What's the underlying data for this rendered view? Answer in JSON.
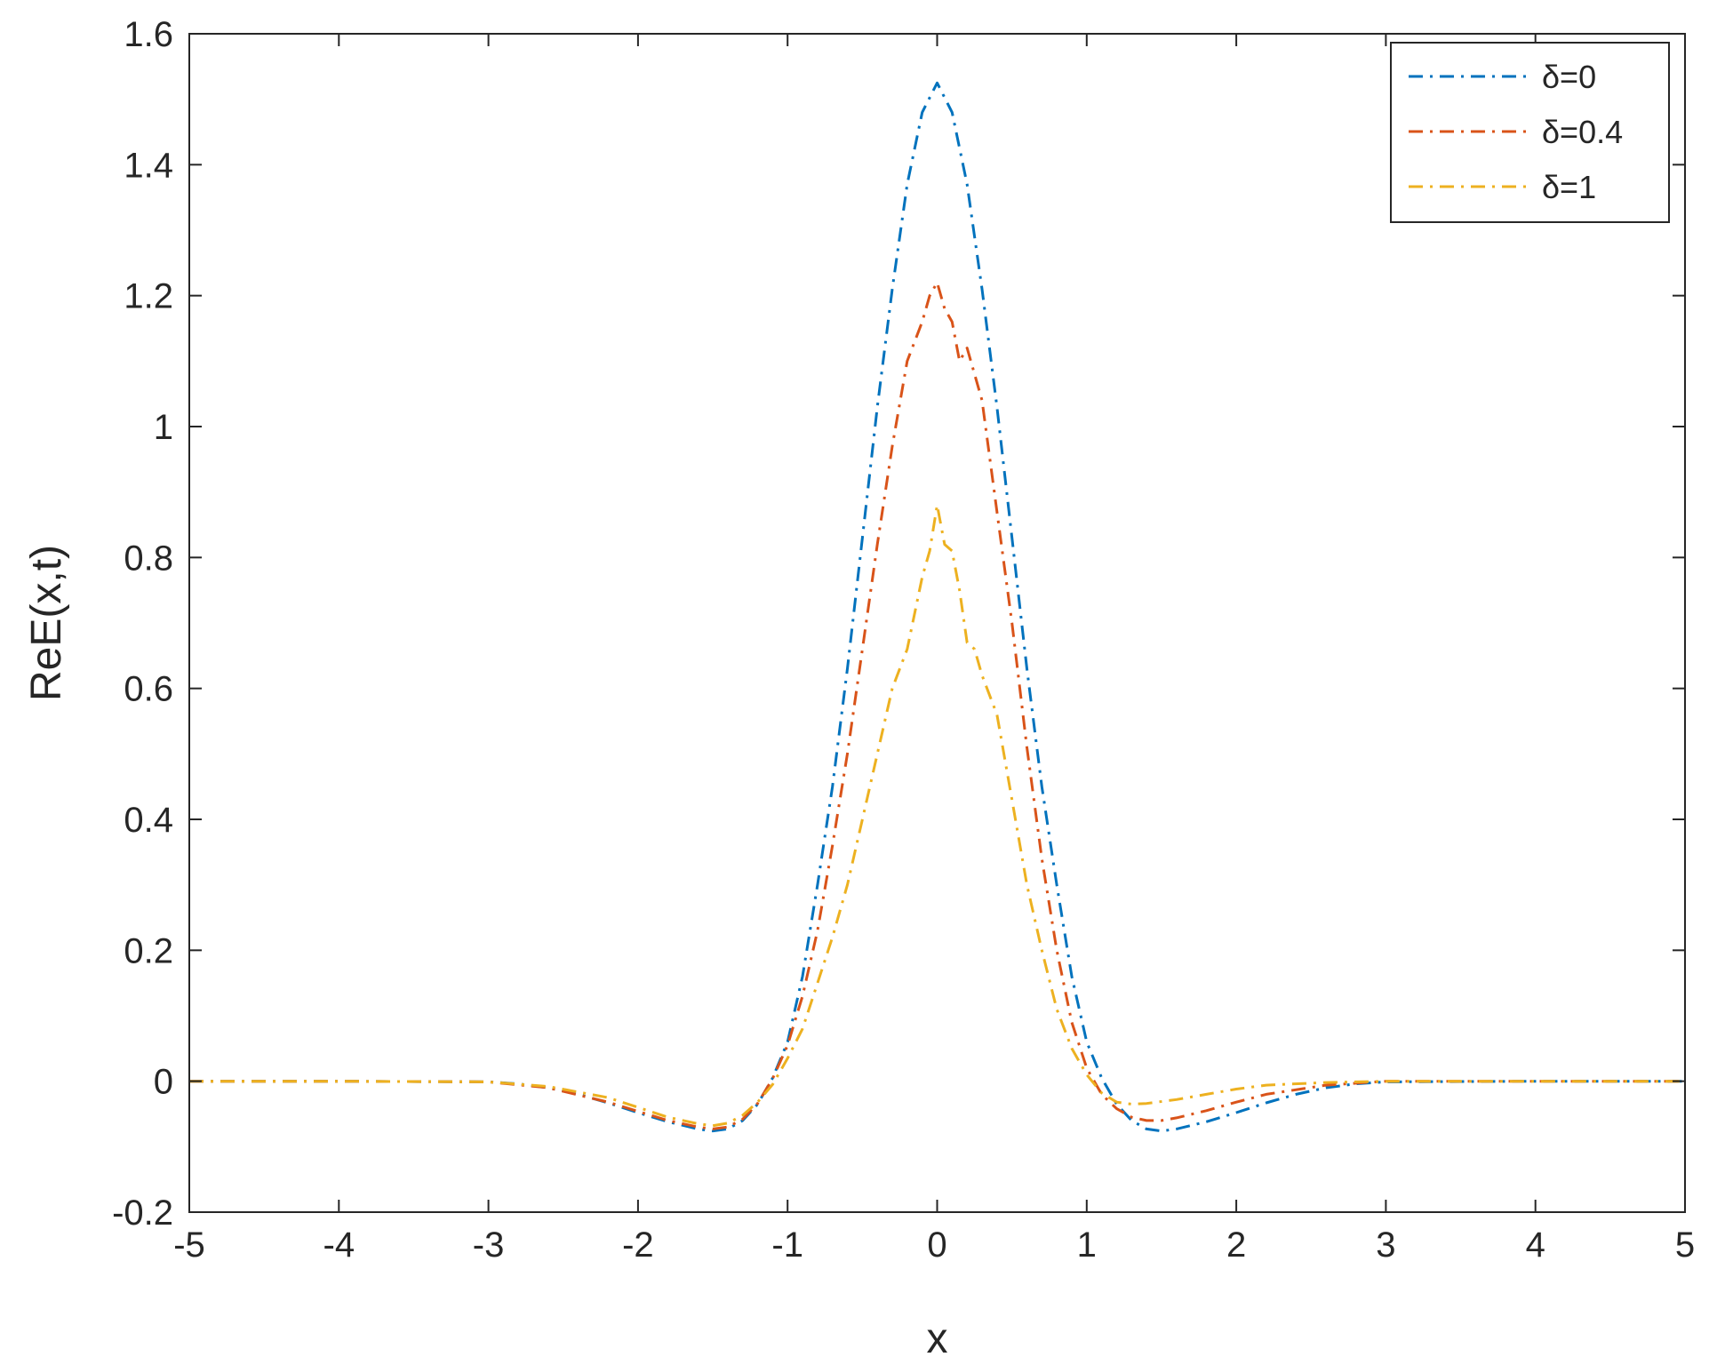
{
  "chart_data": {
    "type": "line",
    "title": "",
    "xlabel": "x",
    "ylabel": "ReE(x,t)",
    "xlim": [
      -5,
      5
    ],
    "ylim": [
      -0.2,
      1.6
    ],
    "xticks": [
      -5,
      -4,
      -3,
      -2,
      -1,
      0,
      1,
      2,
      3,
      4,
      5
    ],
    "yticks": [
      -0.2,
      0,
      0.2,
      0.4,
      0.6,
      0.8,
      1,
      1.2,
      1.4,
      1.6
    ],
    "xtick_labels": [
      "-5",
      "-4",
      "-3",
      "-2",
      "-1",
      "0",
      "1",
      "2",
      "3",
      "4",
      "5"
    ],
    "ytick_labels": [
      "-0.2",
      "0",
      "0.2",
      "0.4",
      "0.6",
      "0.8",
      "1",
      "1.2",
      "1.4",
      "1.6"
    ],
    "grid": false,
    "legend_position": "top-right",
    "series": [
      {
        "name": "δ=0",
        "color": "#0072BD",
        "line_style": "dash-dot",
        "x": [
          -5,
          -4,
          -3,
          -2.8,
          -2.6,
          -2.4,
          -2.2,
          -2,
          -1.8,
          -1.6,
          -1.5,
          -1.4,
          -1.3,
          -1.2,
          -1.1,
          -1,
          -0.9,
          -0.8,
          -0.7,
          -0.6,
          -0.5,
          -0.4,
          -0.3,
          -0.2,
          -0.1,
          0,
          0.1,
          0.2,
          0.3,
          0.4,
          0.5,
          0.6,
          0.7,
          0.8,
          0.9,
          1,
          1.1,
          1.2,
          1.3,
          1.4,
          1.5,
          1.6,
          1.8,
          2,
          2.2,
          2.4,
          2.6,
          2.8,
          3,
          4,
          5
        ],
        "y": [
          0,
          0,
          -0.001,
          -0.004,
          -0.01,
          -0.02,
          -0.033,
          -0.048,
          -0.062,
          -0.073,
          -0.076,
          -0.073,
          -0.06,
          -0.035,
          0.005,
          0.06,
          0.16,
          0.3,
          0.45,
          0.63,
          0.83,
          1.03,
          1.21,
          1.37,
          1.48,
          1.525,
          1.48,
          1.37,
          1.21,
          1.03,
          0.83,
          0.63,
          0.45,
          0.3,
          0.16,
          0.06,
          0.005,
          -0.035,
          -0.06,
          -0.073,
          -0.076,
          -0.073,
          -0.062,
          -0.048,
          -0.033,
          -0.02,
          -0.01,
          -0.004,
          -0.001,
          0,
          0
        ]
      },
      {
        "name": "δ=0.4",
        "color": "#D95319",
        "line_style": "dash-dot",
        "x": [
          -5,
          -4,
          -3,
          -2.6,
          -2.2,
          -2,
          -1.8,
          -1.6,
          -1.5,
          -1.4,
          -1.3,
          -1.2,
          -1.1,
          -1,
          -0.9,
          -0.8,
          -0.7,
          -0.6,
          -0.5,
          -0.4,
          -0.3,
          -0.2,
          -0.1,
          -0.05,
          0,
          0.05,
          0.1,
          0.15,
          0.2,
          0.3,
          0.4,
          0.5,
          0.6,
          0.7,
          0.8,
          0.9,
          1,
          1.1,
          1.2,
          1.3,
          1.4,
          1.5,
          1.6,
          1.8,
          2,
          2.2,
          2.6,
          3,
          4,
          5
        ],
        "y": [
          0,
          0,
          -0.001,
          -0.01,
          -0.032,
          -0.046,
          -0.06,
          -0.07,
          -0.073,
          -0.07,
          -0.058,
          -0.034,
          0.004,
          0.055,
          0.13,
          0.23,
          0.36,
          0.5,
          0.66,
          0.82,
          0.97,
          1.1,
          1.16,
          1.2,
          1.22,
          1.18,
          1.16,
          1.1,
          1.12,
          1.04,
          0.87,
          0.7,
          0.51,
          0.34,
          0.2,
          0.09,
          0.02,
          -0.02,
          -0.042,
          -0.055,
          -0.06,
          -0.06,
          -0.056,
          -0.045,
          -0.032,
          -0.02,
          -0.006,
          0,
          0,
          0
        ]
      },
      {
        "name": "δ=1",
        "color": "#EDB120",
        "line_style": "dash-dot",
        "x": [
          -5,
          -4,
          -3,
          -2.6,
          -2.2,
          -2,
          -1.8,
          -1.6,
          -1.5,
          -1.4,
          -1.3,
          -1.2,
          -1.1,
          -1,
          -0.9,
          -0.8,
          -0.7,
          -0.6,
          -0.5,
          -0.4,
          -0.3,
          -0.2,
          -0.1,
          -0.05,
          0,
          0.05,
          0.1,
          0.15,
          0.2,
          0.25,
          0.3,
          0.4,
          0.5,
          0.6,
          0.7,
          0.8,
          0.9,
          1,
          1.1,
          1.2,
          1.3,
          1.4,
          1.6,
          1.8,
          2,
          2.2,
          2.6,
          3,
          4,
          5
        ],
        "y": [
          0,
          0,
          -0.001,
          -0.008,
          -0.025,
          -0.04,
          -0.055,
          -0.065,
          -0.068,
          -0.064,
          -0.052,
          -0.032,
          -0.005,
          0.035,
          0.08,
          0.15,
          0.22,
          0.3,
          0.4,
          0.5,
          0.6,
          0.66,
          0.77,
          0.81,
          0.88,
          0.82,
          0.81,
          0.75,
          0.67,
          0.66,
          0.62,
          0.56,
          0.43,
          0.3,
          0.2,
          0.11,
          0.05,
          0.01,
          -0.018,
          -0.032,
          -0.035,
          -0.034,
          -0.028,
          -0.02,
          -0.012,
          -0.006,
          -0.002,
          0,
          0,
          0
        ]
      }
    ]
  }
}
